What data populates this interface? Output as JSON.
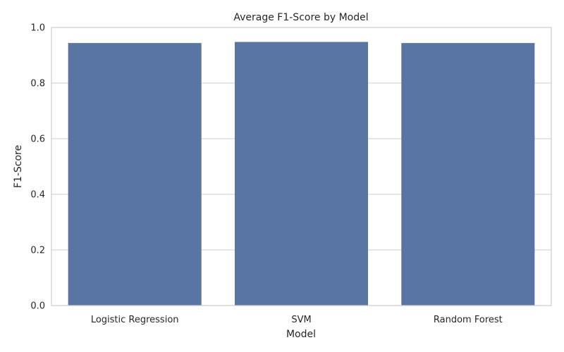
{
  "chart_data": {
    "type": "bar",
    "title": "Average F1-Score by Model",
    "xlabel": "Model",
    "ylabel": "F1-Score",
    "categories": [
      "Logistic Regression",
      "SVM",
      "Random Forest"
    ],
    "values": [
      0.944,
      0.948,
      0.944
    ],
    "ylim": [
      0,
      1.0
    ],
    "yticks": [
      "0.0",
      "0.2",
      "0.4",
      "0.6",
      "0.8",
      "1.0"
    ],
    "grid": "horizontal",
    "bar_color": "#5975a4",
    "grid_color": "#cccccc"
  }
}
